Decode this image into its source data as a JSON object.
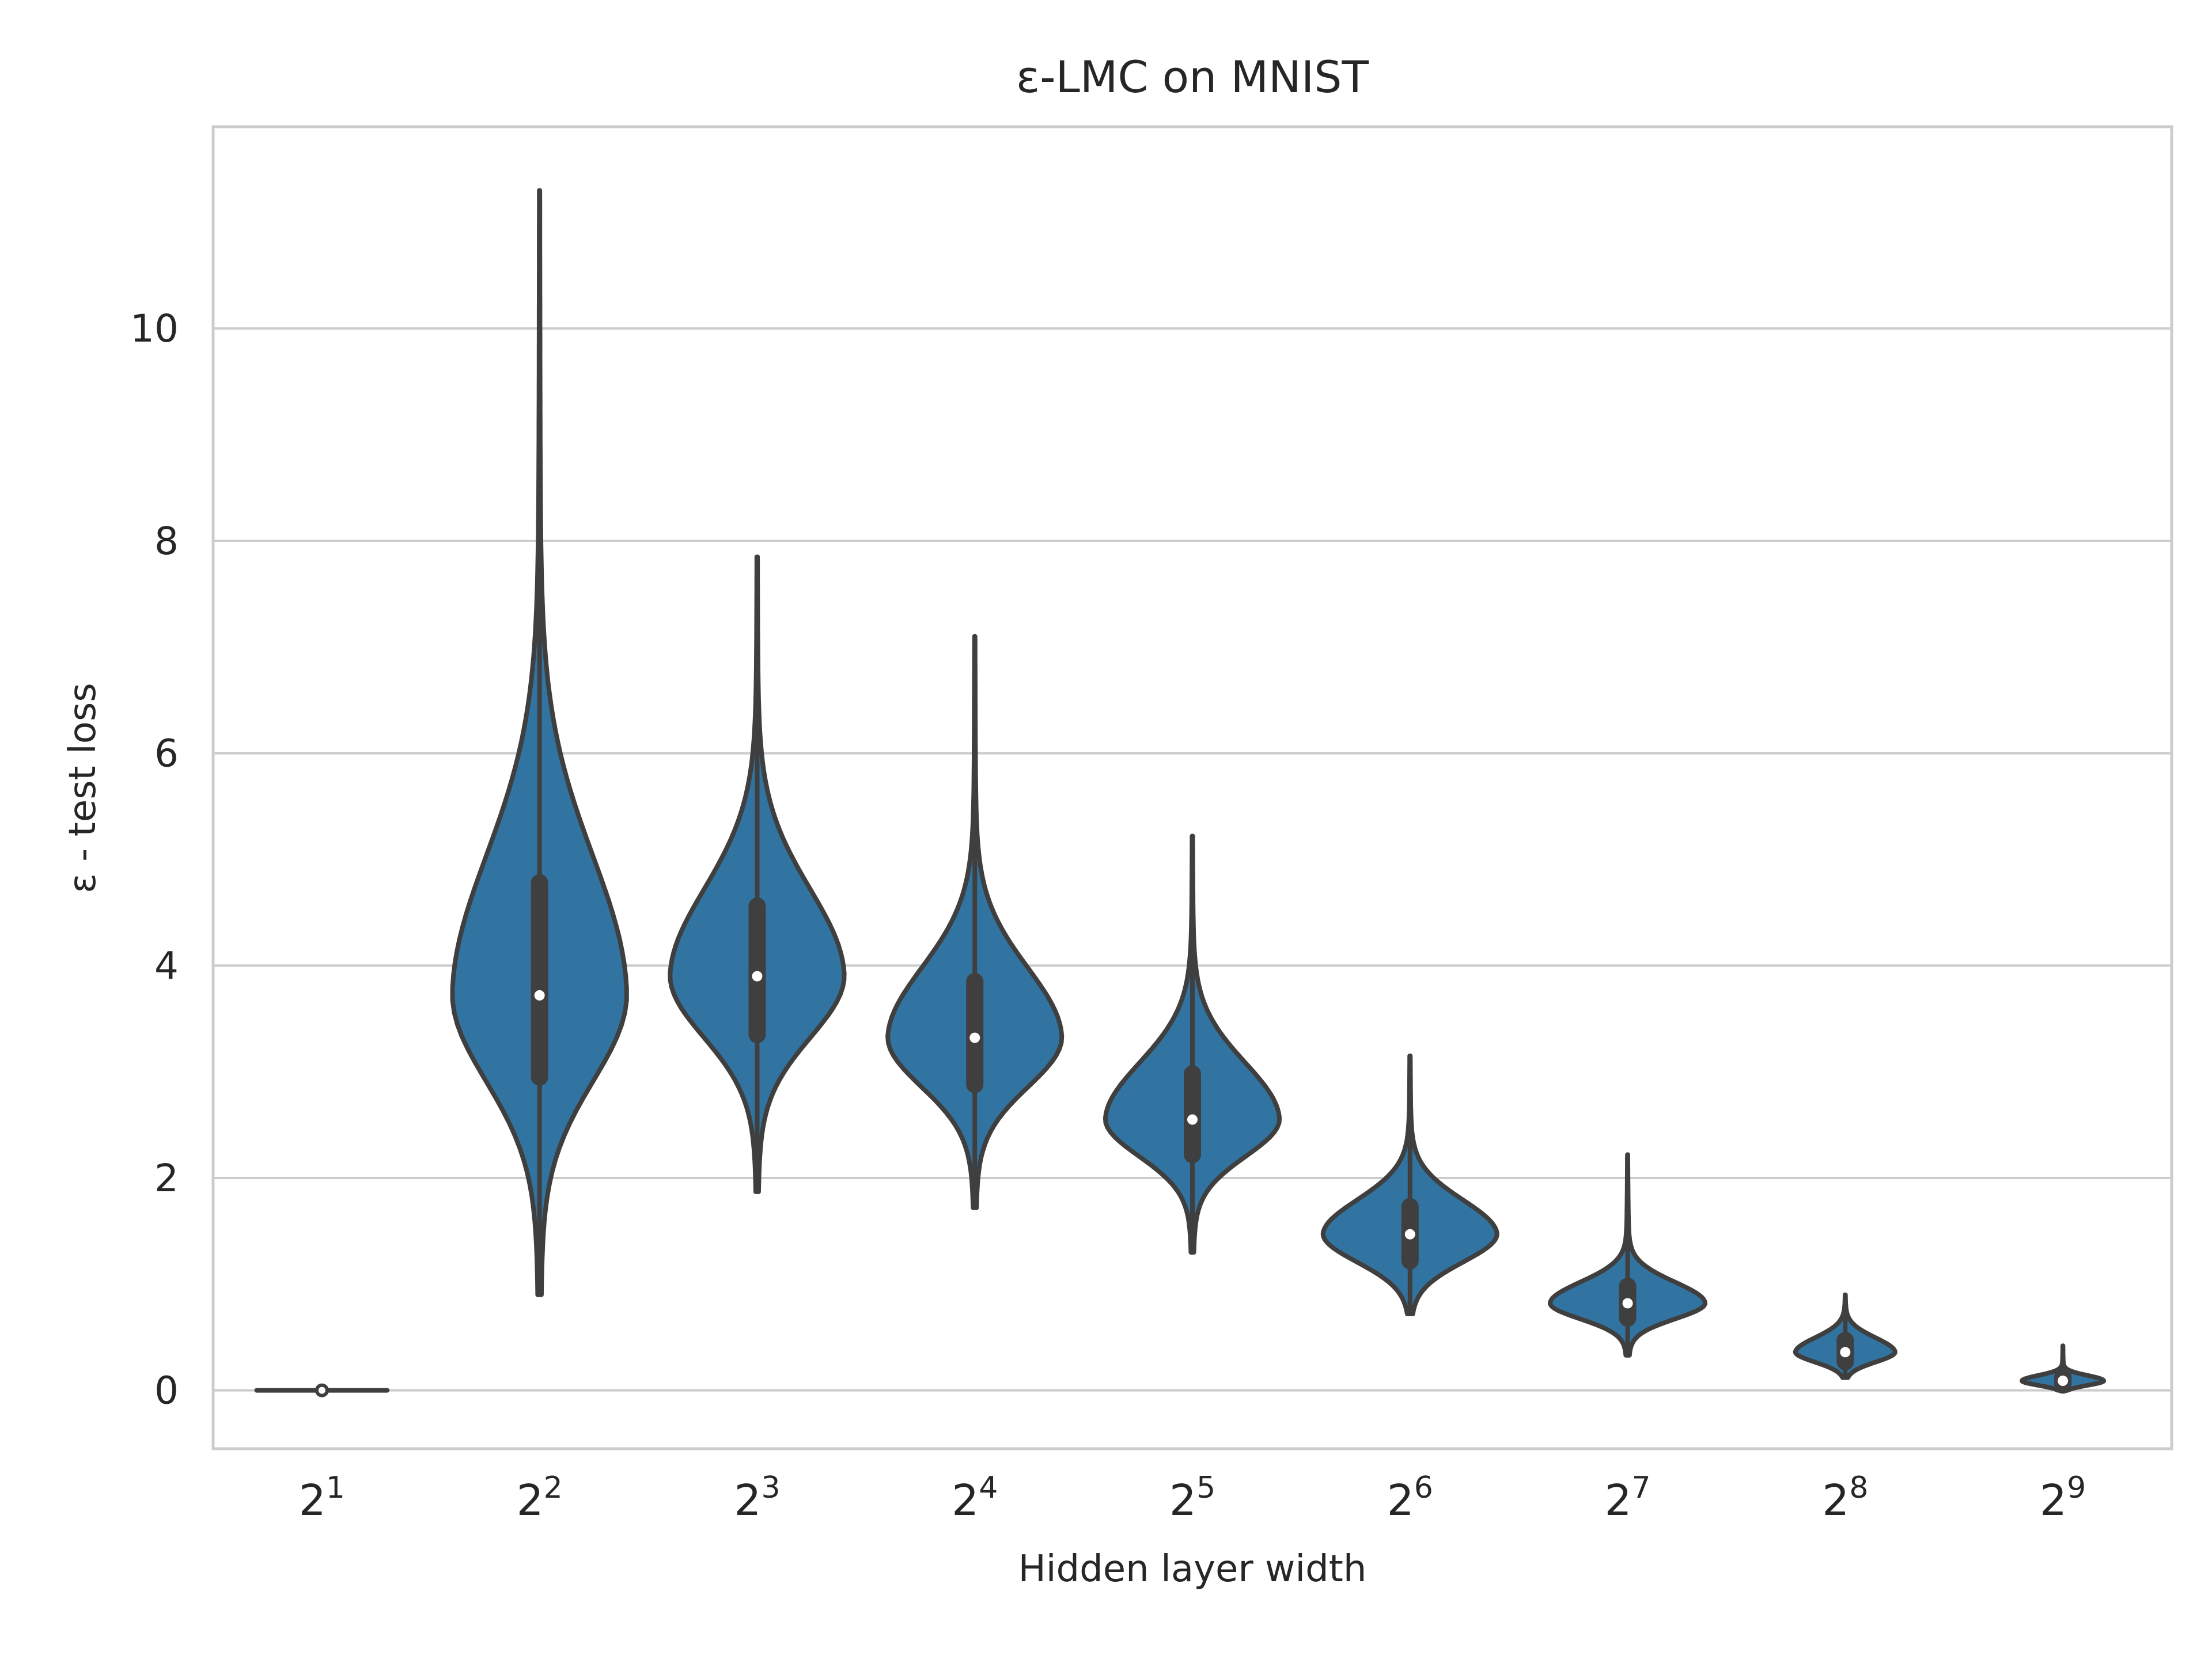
{
  "chart_data": {
    "type": "violin",
    "title": "ε-LMC on MNIST",
    "xlabel": "Hidden layer width",
    "ylabel": "ε - test loss",
    "ylim": [
      -0.55,
      11.9
    ],
    "yticks": [
      0,
      2,
      4,
      6,
      8,
      10
    ],
    "grid": "horizontal",
    "color": "#3274a1",
    "outline_color": "#3f3f3f",
    "categories": [
      {
        "base": "2",
        "exp": "1"
      },
      {
        "base": "2",
        "exp": "2"
      },
      {
        "base": "2",
        "exp": "3"
      },
      {
        "base": "2",
        "exp": "4"
      },
      {
        "base": "2",
        "exp": "5"
      },
      {
        "base": "2",
        "exp": "6"
      },
      {
        "base": "2",
        "exp": "7"
      },
      {
        "base": "2",
        "exp": "8"
      },
      {
        "base": "2",
        "exp": "9"
      }
    ],
    "violins": [
      {
        "min": 0.0,
        "q1": 0.0,
        "median": 0.0,
        "q3": 0.0,
        "max": 0.0
      },
      {
        "min": 0.9,
        "q1": 2.95,
        "median": 3.72,
        "q3": 4.78,
        "max": 11.3
      },
      {
        "min": 1.87,
        "q1": 3.35,
        "median": 3.9,
        "q3": 4.56,
        "max": 7.85
      },
      {
        "min": 1.72,
        "q1": 2.88,
        "median": 3.32,
        "q3": 3.85,
        "max": 7.1
      },
      {
        "min": 1.3,
        "q1": 2.22,
        "median": 2.55,
        "q3": 2.98,
        "max": 5.22
      },
      {
        "min": 0.72,
        "q1": 1.22,
        "median": 1.47,
        "q3": 1.73,
        "max": 3.15
      },
      {
        "min": 0.33,
        "q1": 0.68,
        "median": 0.82,
        "q3": 0.98,
        "max": 2.22
      },
      {
        "min": 0.12,
        "q1": 0.27,
        "median": 0.36,
        "q3": 0.47,
        "max": 0.9
      },
      {
        "min": 0.0,
        "q1": 0.05,
        "median": 0.09,
        "q3": 0.13,
        "max": 0.42
      }
    ]
  }
}
